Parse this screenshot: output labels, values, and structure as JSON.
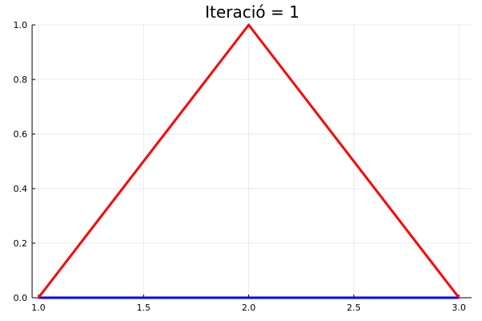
{
  "chart_data": {
    "type": "line",
    "title": "Iteració = 1",
    "xlabel": "",
    "ylabel": "",
    "xlim": [
      0.97,
      3.06
    ],
    "ylim": [
      0,
      1
    ],
    "grid": true,
    "legend": "none",
    "x_ticks": [
      1.0,
      1.5,
      2.0,
      2.5,
      3.0
    ],
    "x_tick_labels": [
      "1.0",
      "1.5",
      "2.0",
      "2.5",
      "3.0"
    ],
    "y_ticks": [
      0.0,
      0.2,
      0.4,
      0.6,
      0.8,
      1.0
    ],
    "y_tick_labels": [
      "0.0",
      "0.2",
      "0.4",
      "0.6",
      "0.8",
      "1.0"
    ],
    "series": [
      {
        "color": "#0000ff",
        "x": [
          1.0,
          3.0
        ],
        "y": [
          0.0,
          0.0
        ]
      },
      {
        "color": "#ff0000",
        "x": [
          1.0,
          2.0,
          3.0
        ],
        "y": [
          0.0,
          1.0,
          0.0
        ]
      }
    ]
  }
}
